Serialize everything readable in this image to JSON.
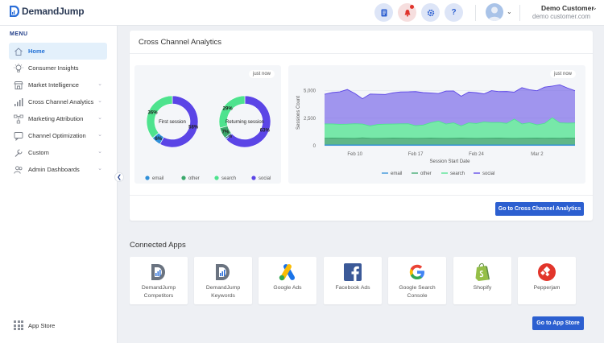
{
  "brand": {
    "name": "DemandJump"
  },
  "user": {
    "name": "Demo Customer",
    "email": "demo customer.com"
  },
  "sidebar": {
    "menu_heading": "MENU",
    "items": [
      {
        "label": "Home",
        "icon": "home-icon",
        "active": true,
        "has_chevron": false
      },
      {
        "label": "Consumer Insights",
        "icon": "lightbulb-icon",
        "active": false,
        "has_chevron": false
      },
      {
        "label": "Market Intelligence",
        "icon": "store-icon",
        "active": false,
        "has_chevron": true
      },
      {
        "label": "Cross Channel Analytics",
        "icon": "bar-chart-icon",
        "active": false,
        "has_chevron": true
      },
      {
        "label": "Marketing Attribution",
        "icon": "flow-icon",
        "active": false,
        "has_chevron": true
      },
      {
        "label": "Channel Optimization",
        "icon": "chat-icon",
        "active": false,
        "has_chevron": true
      },
      {
        "label": "Custom",
        "icon": "wrench-icon",
        "active": false,
        "has_chevron": true
      },
      {
        "label": "Admin Dashboards",
        "icon": "users-icon",
        "active": false,
        "has_chevron": true
      }
    ],
    "app_store_label": "App Store"
  },
  "analytics": {
    "title": "Cross Channel Analytics",
    "timestamp_left": "just now",
    "timestamp_right": "just now",
    "donuts": [
      {
        "label": "First session",
        "slices": [
          {
            "name": "social",
            "pct": 58,
            "text": "58%"
          },
          {
            "name": "email",
            "pct": 6,
            "text": "6%"
          },
          {
            "name": "search",
            "pct": 36,
            "text": "36%"
          }
        ]
      },
      {
        "label": "Returning session",
        "slices": [
          {
            "name": "social",
            "pct": 63,
            "text": "63%"
          },
          {
            "name": "email",
            "pct": 1,
            "text": "1%"
          },
          {
            "name": "other",
            "pct": 7,
            "text": "7%"
          },
          {
            "name": "search",
            "pct": 29,
            "text": "29%"
          }
        ]
      }
    ],
    "donut_legend": [
      "email",
      "other",
      "search",
      "social"
    ],
    "button_label": "Go to Cross Channel Analytics"
  },
  "colors": {
    "email": "#2f8fd8",
    "other": "#3aa86b",
    "search": "#4ee38e",
    "social": "#5b45e6",
    "accent": "#2c5fd0"
  },
  "chart_data": {
    "type": "area",
    "xlabel": "Session Start Date",
    "ylabel": "Sessions Count",
    "x_ticks": [
      "Feb 10",
      "Feb 17",
      "Feb 24",
      "Mar 2"
    ],
    "y_ticks": [
      "0",
      "2,500",
      "5,000"
    ],
    "ylim": [
      0,
      6000
    ],
    "stacked": true,
    "legend_position": "bottom",
    "series": [
      {
        "name": "email",
        "values": [
          80,
          80,
          80,
          80,
          80,
          80,
          80,
          80,
          80,
          80,
          80,
          80,
          80,
          80,
          80,
          80,
          80,
          80,
          80,
          80,
          80,
          80,
          80,
          80,
          80,
          80,
          80,
          80,
          80,
          80,
          80,
          80,
          80,
          80
        ]
      },
      {
        "name": "other",
        "values": [
          600,
          620,
          610,
          600,
          590,
          640,
          600,
          590,
          600,
          620,
          610,
          600,
          590,
          600,
          620,
          600,
          590,
          600,
          620,
          600,
          590,
          600,
          610,
          620,
          600,
          590,
          600,
          610,
          620,
          600,
          610,
          600,
          620,
          610
        ]
      },
      {
        "name": "search",
        "values": [
          1300,
          1280,
          1250,
          1280,
          1330,
          1250,
          1120,
          1260,
          1280,
          1270,
          1300,
          1320,
          1150,
          1200,
          1400,
          1560,
          1300,
          1400,
          1100,
          1400,
          1350,
          1480,
          1420,
          1420,
          1350,
          1750,
          1300,
          1400,
          1200,
          1350,
          1850,
          1400,
          1350,
          1380
        ]
      },
      {
        "name": "social",
        "values": [
          2700,
          2850,
          2960,
          3150,
          2750,
          2300,
          2900,
          2750,
          2700,
          2840,
          2900,
          2900,
          3100,
          2950,
          2700,
          2500,
          3000,
          2900,
          2700,
          2800,
          2800,
          2550,
          2900,
          2800,
          2900,
          2450,
          3300,
          3000,
          3100,
          3300,
          2880,
          3460,
          3200,
          2930
        ]
      }
    ],
    "legend": [
      "email",
      "other",
      "search",
      "social"
    ]
  },
  "connected_apps": {
    "title": "Connected Apps",
    "apps": [
      {
        "label": "DemandJump Competitors",
        "icon": "demandjump-competitors-icon"
      },
      {
        "label": "DemandJump Keywords",
        "icon": "demandjump-keywords-icon"
      },
      {
        "label": "Google Ads",
        "icon": "google-ads-icon"
      },
      {
        "label": "Facebook Ads",
        "icon": "facebook-icon"
      },
      {
        "label": "Google Search Console",
        "icon": "google-icon"
      },
      {
        "label": "Shopify",
        "icon": "shopify-icon"
      },
      {
        "label": "Pepperjam",
        "icon": "pepperjam-icon"
      }
    ],
    "button_label": "Go to App Store"
  }
}
